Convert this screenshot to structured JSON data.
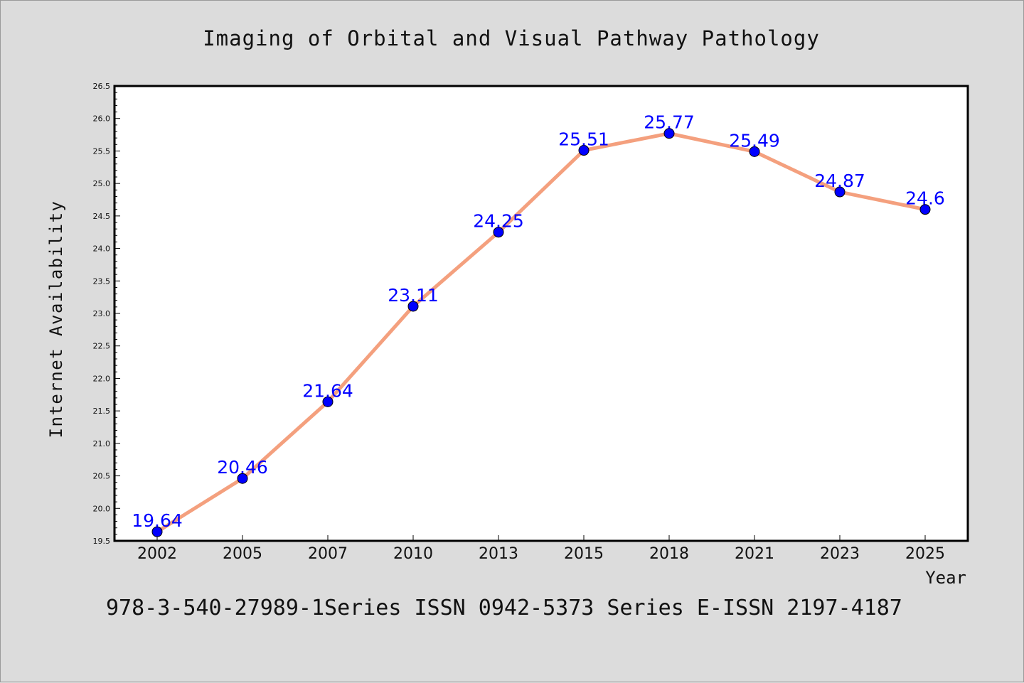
{
  "chart_data": {
    "type": "line",
    "title": "Imaging of Orbital and Visual Pathway Pathology",
    "xlabel": "Year",
    "ylabel": "Internet Availability",
    "categories": [
      "2002",
      "2005",
      "2007",
      "2010",
      "2013",
      "2015",
      "2018",
      "2021",
      "2023",
      "2025"
    ],
    "series": [
      {
        "values": [
          19.64,
          20.46,
          21.64,
          23.11,
          24.25,
          25.51,
          25.77,
          25.49,
          24.87,
          24.6
        ],
        "data_labels": [
          "19.64",
          "20.46",
          "21.64",
          "23.11",
          "24.25",
          "25.51",
          "25.77",
          "25.49",
          "24.87",
          "24.6"
        ]
      }
    ],
    "ylim": [
      19.5,
      26.5
    ],
    "yticks": [
      "19.5",
      "20.0",
      "20.5",
      "21.0",
      "21.5",
      "22.0",
      "22.5",
      "23.0",
      "23.5",
      "24.0",
      "24.5",
      "25.0",
      "25.5",
      "26.0",
      "26.5"
    ],
    "grid": false,
    "legend": "none",
    "colors": {
      "line": "#f4a07e",
      "marker": "#0000ff",
      "data_label": "#0000ff",
      "plot_background": "#ffffff",
      "page_background": "#dcdcdc"
    }
  },
  "footer": {
    "text": "978-3-540-27989-1Series ISSN 0942-5373 Series E-ISSN 2197-4187"
  }
}
